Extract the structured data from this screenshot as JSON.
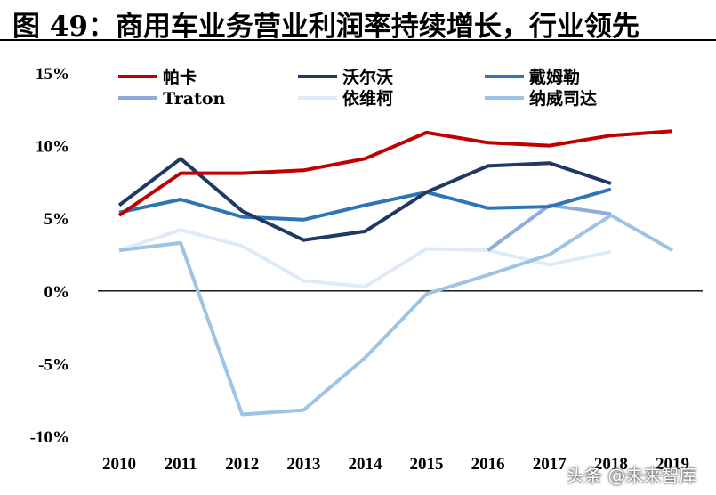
{
  "title": "图 49：商用车业务营业利润率持续增长，行业领先",
  "watermark": "头条 @未来智库",
  "chart_data": {
    "type": "line",
    "title": "图 49：商用车业务营业利润率持续增长，行业领先",
    "xlabel": "",
    "ylabel": "",
    "x": [
      "2010",
      "2011",
      "2012",
      "2013",
      "2014",
      "2015",
      "2016",
      "2017",
      "2018",
      "2019"
    ],
    "ylim": [
      -10,
      15
    ],
    "yticks": [
      -10,
      -5,
      0,
      5,
      10,
      15
    ],
    "ytick_labels": [
      "-10%",
      "-5%",
      "0%",
      "5%",
      "10%",
      "15%"
    ],
    "grid": false,
    "legend_position": "top",
    "series": [
      {
        "name": "帕卡",
        "color": "#C00000",
        "values": [
          5.2,
          8.1,
          8.1,
          8.3,
          9.1,
          10.9,
          10.2,
          10.0,
          10.7,
          11.0
        ]
      },
      {
        "name": "沃尔沃",
        "color": "#1F3864",
        "values": [
          5.9,
          9.1,
          5.5,
          3.5,
          4.1,
          6.8,
          8.6,
          8.8,
          7.4,
          null
        ]
      },
      {
        "name": "戴姆勒",
        "color": "#2E75B6",
        "values": [
          5.4,
          6.3,
          5.1,
          4.9,
          5.9,
          6.8,
          5.7,
          5.8,
          7.0,
          null
        ]
      },
      {
        "name": "Traton",
        "color": "#8FAADC",
        "values": [
          null,
          null,
          null,
          null,
          null,
          null,
          2.8,
          5.9,
          5.3,
          null
        ]
      },
      {
        "name": "依维柯",
        "color": "#DEEBF7",
        "values": [
          2.8,
          4.2,
          3.1,
          0.7,
          0.3,
          2.9,
          2.8,
          1.8,
          2.7,
          null
        ]
      },
      {
        "name": "纳威司达",
        "color": "#9DC3E6",
        "values": [
          2.8,
          3.3,
          -8.5,
          -8.2,
          -4.6,
          -0.2,
          1.1,
          2.5,
          5.2,
          2.8
        ]
      }
    ]
  }
}
